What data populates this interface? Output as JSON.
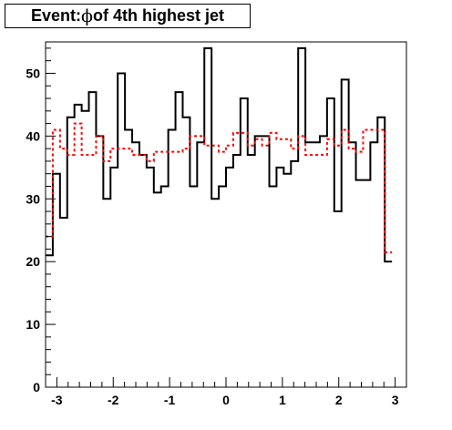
{
  "title": {
    "prefix": "Event: ",
    "symbol": "ϕ",
    "suffix": " of 4th highest jet"
  },
  "chart_data": {
    "type": "histogram",
    "title": "Event: ϕ of 4th highest jet",
    "xlabel": "",
    "ylabel": "",
    "xlim": [
      -3.2,
      3.2
    ],
    "ylim": [
      0,
      55
    ],
    "grid": false,
    "bin_edges_start": -3.2,
    "bin_width": 0.128,
    "x_ticks": [
      -3,
      -2,
      -1,
      0,
      1,
      2,
      3
    ],
    "x_tick_labels": [
      "-3",
      "-2",
      "-1",
      "0",
      "1",
      "2",
      "3"
    ],
    "y_ticks": [
      0,
      10,
      20,
      30,
      40,
      50
    ],
    "y_tick_labels": [
      "0",
      "10",
      "20",
      "30",
      "40",
      "50"
    ],
    "series": [
      {
        "style": "solid",
        "color": "#000000",
        "values": [
          21,
          34,
          27,
          43,
          45,
          44,
          47,
          40,
          30,
          35,
          50,
          41,
          39,
          37,
          35,
          31,
          32,
          41,
          47,
          43,
          32,
          39,
          54,
          30,
          32,
          35,
          37,
          46,
          37,
          40,
          40,
          32,
          35,
          34,
          36,
          54,
          39,
          39,
          40,
          46,
          28,
          49,
          39,
          33,
          33,
          39,
          43,
          20
        ]
      },
      {
        "style": "dashed",
        "color": "#ff0000",
        "values": [
          24,
          41,
          38,
          37,
          42,
          37,
          37,
          40,
          36,
          38,
          38,
          38,
          37,
          37,
          36,
          37.5,
          37.5,
          37.5,
          37.5,
          38,
          40,
          40,
          38.5,
          38.5,
          37.5,
          38.5,
          40.5,
          40.5,
          38.5,
          39.5,
          38.5,
          40.5,
          39.5,
          39.5,
          38,
          40,
          37,
          37,
          37,
          39.5,
          38.5,
          41,
          38,
          37.5,
          41,
          41,
          41,
          21.5
        ]
      }
    ]
  }
}
